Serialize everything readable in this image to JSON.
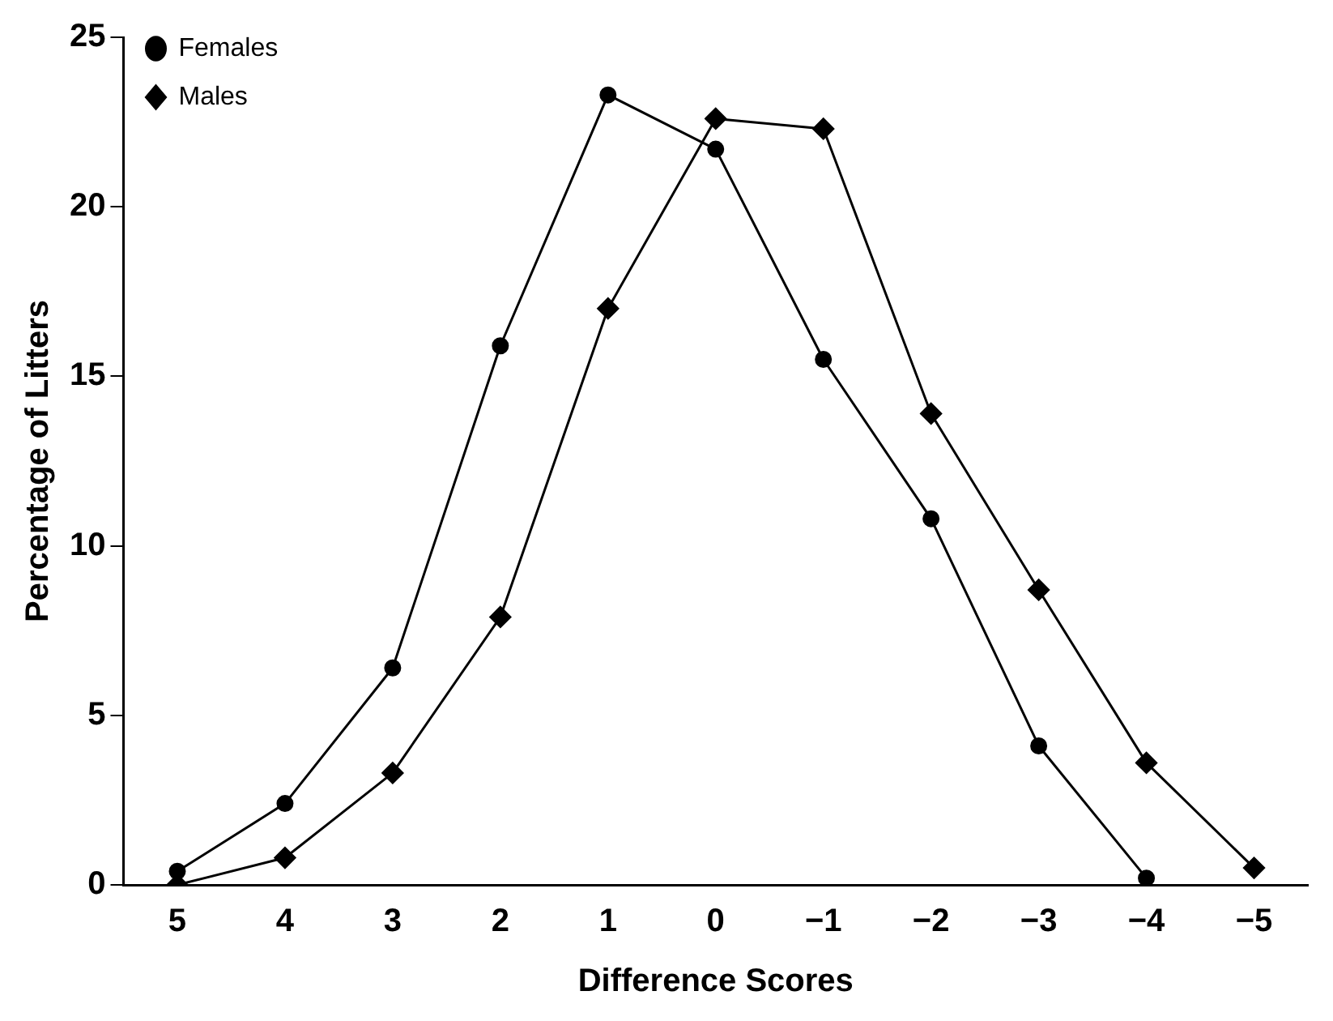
{
  "chart_data": {
    "type": "line",
    "xlabel": "Difference Scores",
    "ylabel": "Percentage of Litters",
    "categories": [
      "5",
      "4",
      "3",
      "2",
      "1",
      "0",
      "−1",
      "−2",
      "−3",
      "−4",
      "−5"
    ],
    "series": [
      {
        "name": "Females",
        "color": "#000000",
        "marker": "circle",
        "values": [
          0.4,
          2.4,
          6.4,
          15.9,
          23.3,
          21.7,
          15.5,
          10.8,
          4.1,
          0.2,
          null
        ]
      },
      {
        "name": "Males",
        "color": "#000000",
        "marker": "diamond",
        "values": [
          0,
          0.8,
          3.3,
          7.9,
          17.0,
          22.6,
          22.3,
          13.9,
          8.7,
          3.6,
          0.5
        ]
      }
    ],
    "ylim": [
      0,
      25
    ],
    "yticks": [
      0,
      5,
      10,
      15,
      20,
      25
    ],
    "grid": false,
    "legend": "top left",
    "line_style": "solid"
  }
}
